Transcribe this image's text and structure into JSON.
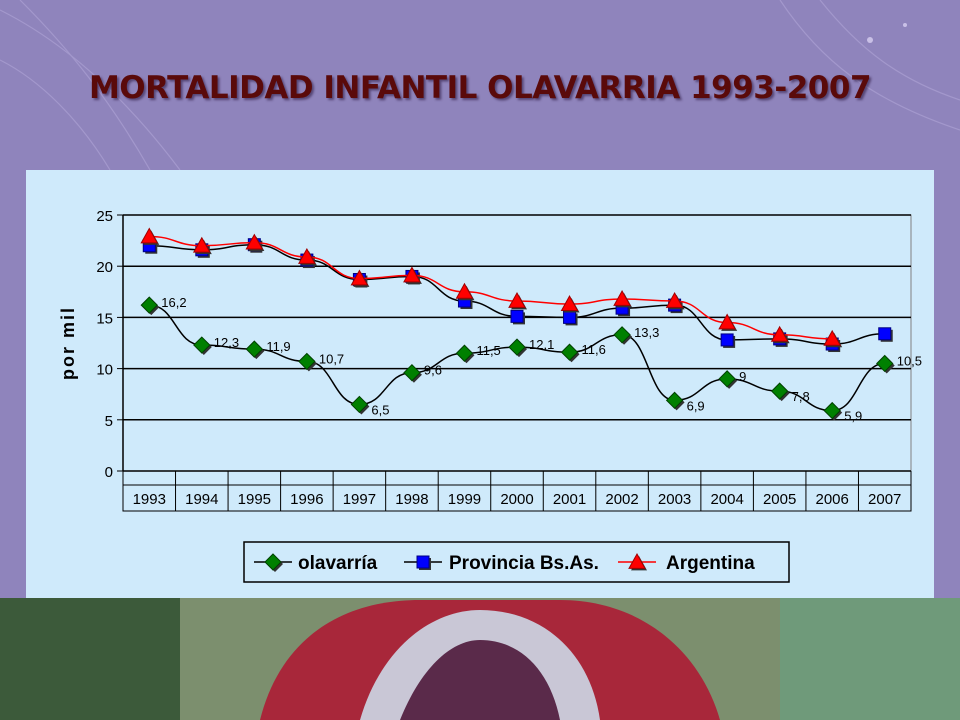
{
  "slide": {
    "title": "MORTALIDAD INFANTIL OLAVARRIA 1993-2007"
  },
  "chart_data": {
    "type": "line",
    "ylabel": "por mil",
    "ylim": [
      0,
      25
    ],
    "yticks": [
      "0",
      "5",
      "10",
      "15",
      "20",
      "25"
    ],
    "categories": [
      "1993",
      "1994",
      "1995",
      "1996",
      "1997",
      "1998",
      "1999",
      "2000",
      "2001",
      "2002",
      "2003",
      "2004",
      "2005",
      "2006",
      "2007"
    ],
    "grid": "horizontal",
    "legend_placement": "bottom",
    "series": [
      {
        "name": "olavarría",
        "color": "#008000",
        "marker": "diamond",
        "line_color": "#000000",
        "values": [
          16.2,
          12.3,
          11.9,
          10.7,
          6.5,
          9.6,
          11.5,
          12.1,
          11.6,
          13.3,
          6.9,
          9,
          7.8,
          5.9,
          10.5
        ],
        "labels": [
          "16,2",
          "12,3",
          "11,9",
          "10,7",
          "6,5",
          "9,6",
          "11,5",
          "12,1",
          "11,6",
          "13,3",
          "6,9",
          "9",
          "7,8",
          "5,9",
          "10,5"
        ]
      },
      {
        "name": "Provincia Bs.As.",
        "color": "#0000ff",
        "marker": "square",
        "line_color": "#000000",
        "values": [
          22,
          21.6,
          22.1,
          20.6,
          18.7,
          19.0,
          16.6,
          15.1,
          15.0,
          15.9,
          16.2,
          12.8,
          12.9,
          12.4,
          13.4
        ]
      },
      {
        "name": "Argentina",
        "color": "#ff0000",
        "marker": "triangle",
        "line_color": "#ff0000",
        "values": [
          22.9,
          22.0,
          22.3,
          20.9,
          18.8,
          19.1,
          17.5,
          16.6,
          16.3,
          16.8,
          16.6,
          14.5,
          13.3,
          12.9,
          null
        ]
      }
    ]
  }
}
